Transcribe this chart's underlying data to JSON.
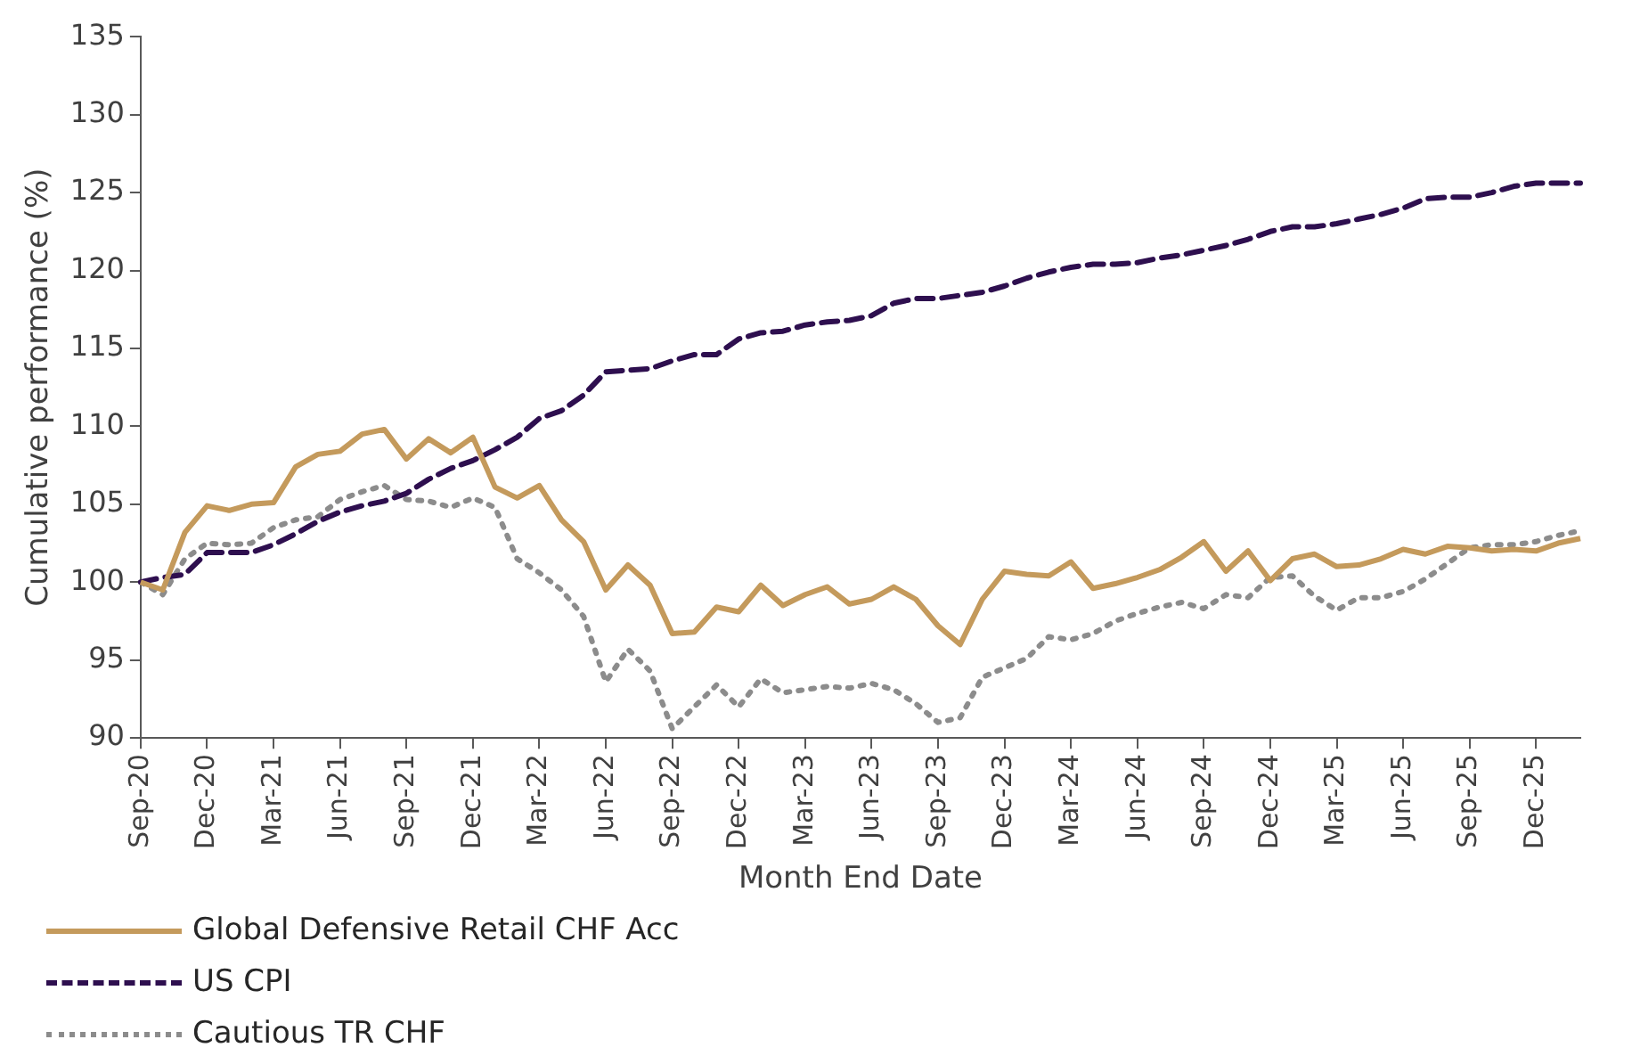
{
  "chart_data": {
    "type": "line",
    "xlabel": "Month End Date",
    "ylabel": "Cumulative performance (%)",
    "categories": [
      "Sep-20",
      null,
      null,
      "Dec-20",
      null,
      null,
      "Mar-21",
      null,
      null,
      "Jun-21",
      null,
      null,
      "Sep-21",
      null,
      null,
      "Dec-21",
      null,
      null,
      "Mar-22",
      null,
      null,
      "Jun-22",
      null,
      null,
      "Sep-22",
      null,
      null,
      "Dec-22",
      null,
      null,
      "Mar-23",
      null,
      null,
      "Jun-23",
      null,
      null,
      "Sep-23",
      null,
      null,
      "Dec-23",
      null,
      null,
      "Mar-24",
      null,
      null,
      "Jun-24",
      null,
      null,
      "Sep-24",
      null,
      null,
      "Dec-24",
      null,
      null,
      "Mar-25",
      null,
      null,
      "Jun-25",
      null,
      null,
      "Sep-25",
      null,
      null,
      "Dec-25",
      null,
      null
    ],
    "series": [
      {
        "name": "Global Defensive Retail CHF Acc",
        "color": "#c49a5c",
        "line_style": "solid",
        "values": [
          100,
          99.5,
          103.2,
          104.9,
          104.6,
          105,
          105.1,
          107.4,
          108.2,
          108.4,
          109.5,
          109.8,
          107.9,
          109.2,
          108.3,
          109.3,
          106.1,
          105.4,
          106.2,
          104,
          102.6,
          99.5,
          101.1,
          99.8,
          96.7,
          96.8,
          98.4,
          98.1,
          99.8,
          98.5,
          99.2,
          99.7,
          98.6,
          98.9,
          99.7,
          98.9,
          97.2,
          96,
          98.9,
          100.7,
          100.5,
          100.4,
          101.3,
          99.6,
          99.9,
          100.3,
          100.8,
          101.6,
          102.6,
          100.7,
          102,
          100.1,
          101.5,
          101.8,
          101,
          101.1,
          101.5,
          102.1,
          101.8,
          102.3,
          102.2,
          102,
          102.1,
          102,
          102.5,
          102.8
        ]
      },
      {
        "name": "US CPI",
        "color": "#2e0f4f",
        "line_style": "dashed",
        "values": [
          100,
          100.3,
          100.5,
          101.9,
          101.9,
          101.9,
          102.4,
          103.1,
          103.9,
          104.5,
          104.9,
          105.2,
          105.7,
          106.6,
          107.3,
          107.8,
          108.5,
          109.3,
          110.5,
          111,
          112,
          113.5,
          113.6,
          113.7,
          114.2,
          114.6,
          114.6,
          115.6,
          116,
          116.1,
          116.5,
          116.7,
          116.8,
          117.1,
          117.9,
          118.2,
          118.2,
          118.4,
          118.6,
          119,
          119.5,
          119.9,
          120.2,
          120.4,
          120.4,
          120.5,
          120.8,
          121,
          121.3,
          121.6,
          122,
          122.5,
          122.8,
          122.8,
          123,
          123.3,
          123.6,
          124,
          124.6,
          124.7,
          124.7,
          125,
          125.4,
          125.6,
          125.6,
          125.6
        ]
      },
      {
        "name": "Cautious TR CHF",
        "color": "#8c8c8c",
        "line_style": "dotted",
        "values": [
          100,
          99.2,
          101.5,
          102.5,
          102.4,
          102.5,
          103.5,
          104,
          104.2,
          105.3,
          105.8,
          106.2,
          105.3,
          105.2,
          104.8,
          105.4,
          104.8,
          101.5,
          100.6,
          99.5,
          97.8,
          93.6,
          95.7,
          94.3,
          90.6,
          92,
          93.4,
          92,
          93.8,
          92.9,
          93.1,
          93.3,
          93.2,
          93.5,
          93.1,
          92.2,
          91,
          91.3,
          93.9,
          94.5,
          95.1,
          96.5,
          96.3,
          96.7,
          97.5,
          98,
          98.4,
          98.7,
          98.3,
          99.2,
          99,
          100.3,
          100.4,
          99.1,
          98.2,
          99,
          99,
          99.4,
          100.2,
          101.2,
          102.2,
          102.4,
          102.4,
          102.6,
          103,
          103.3
        ]
      }
    ],
    "ylim": [
      90,
      135
    ],
    "yticks": [
      90,
      95,
      100,
      105,
      110,
      115,
      120,
      125,
      130,
      135
    ],
    "grid": false,
    "legend": "bottom",
    "marker": "none"
  }
}
